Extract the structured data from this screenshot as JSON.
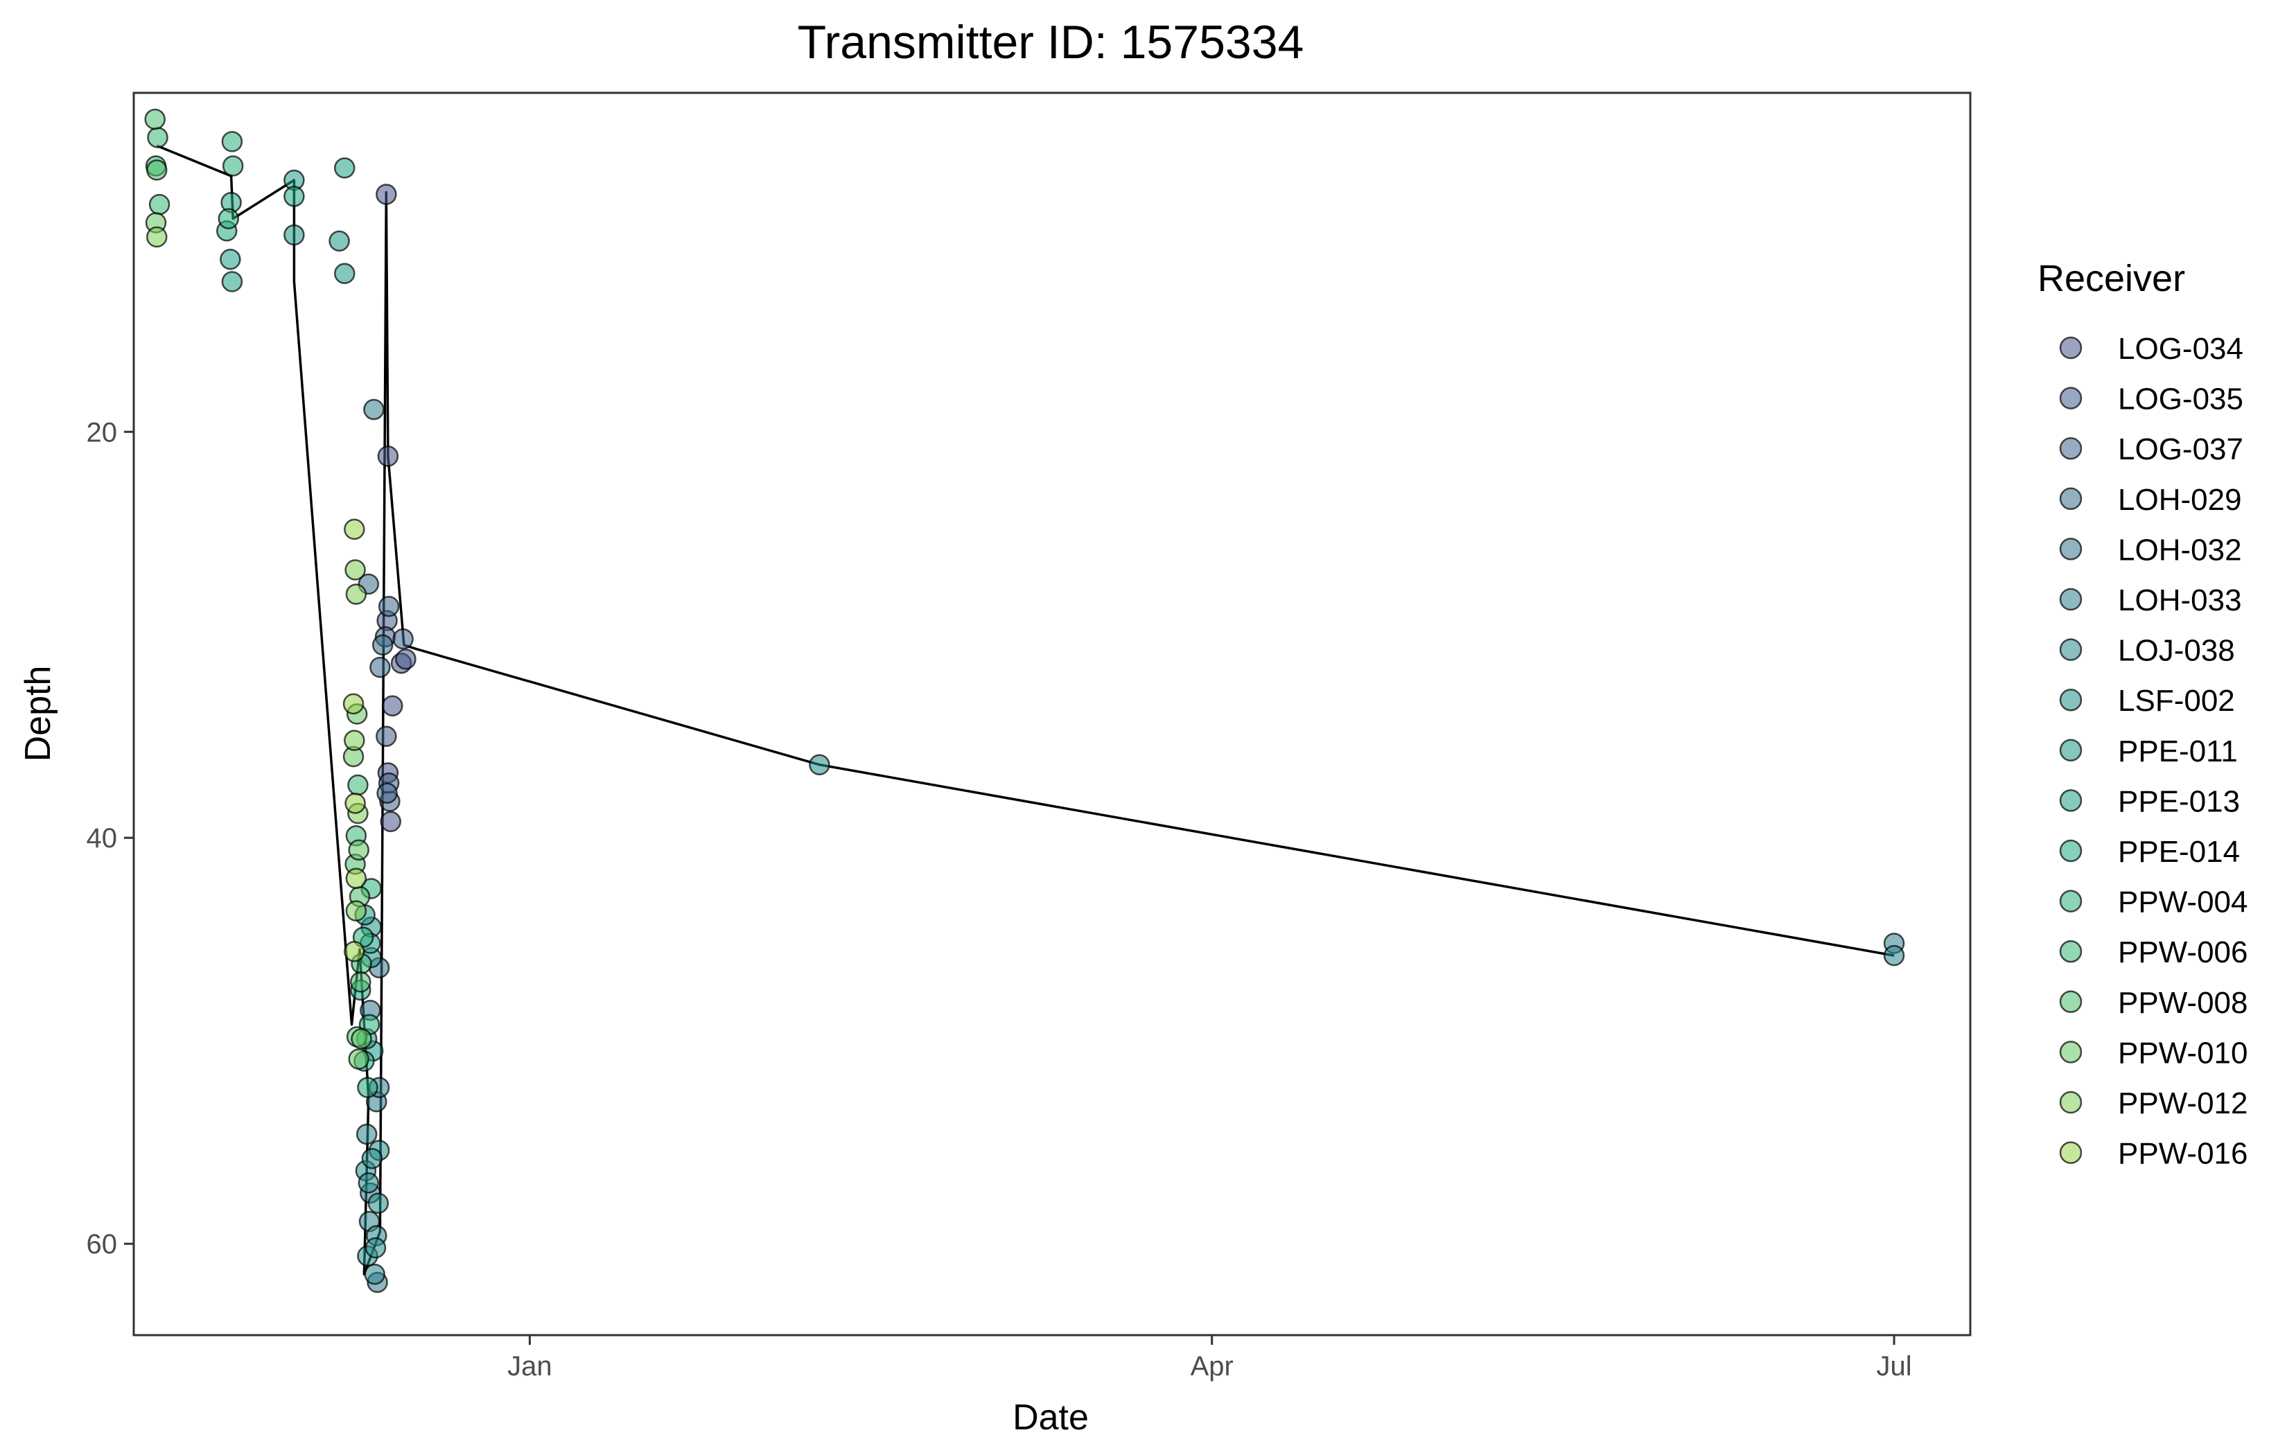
{
  "chart_data": {
    "type": "scatter",
    "title": "Transmitter ID: 1575334",
    "xlabel": "Date",
    "ylabel": "Depth",
    "x_unit": "days since Jan 1",
    "xlim": [
      -44.7,
      162.6
    ],
    "ylim": [
      64.5,
      3.3
    ],
    "y_reversed": true,
    "grid": false,
    "x_ticks": [
      {
        "label": "Jan",
        "value": 0
      },
      {
        "label": "Apr",
        "value": 77
      },
      {
        "label": "Jul",
        "value": 154
      }
    ],
    "y_ticks": [
      20,
      40,
      60
    ],
    "legend": {
      "title": "Receiver",
      "placement": "right",
      "entries": [
        {
          "label": "LOG-034",
          "color": "#48578c"
        },
        {
          "label": "LOG-035",
          "color": "#455f8d"
        },
        {
          "label": "LOG-037",
          "color": "#41678d"
        },
        {
          "label": "LOH-029",
          "color": "#3c6f8d"
        },
        {
          "label": "LOH-032",
          "color": "#36778e"
        },
        {
          "label": "LOH-033",
          "color": "#317f8e"
        },
        {
          "label": "LOJ-038",
          "color": "#2b878e"
        },
        {
          "label": "LSF-002",
          "color": "#268f8d"
        },
        {
          "label": "PPE-011",
          "color": "#21978b"
        },
        {
          "label": "PPE-013",
          "color": "#1fa088"
        },
        {
          "label": "PPE-014",
          "color": "#22a884"
        },
        {
          "label": "PPW-004",
          "color": "#2cb07e"
        },
        {
          "label": "PPW-006",
          "color": "#3bb877"
        },
        {
          "label": "PPW-008",
          "color": "#4fc06e"
        },
        {
          "label": "PPW-010",
          "color": "#66c664"
        },
        {
          "label": "PPW-012",
          "color": "#7fcd58"
        },
        {
          "label": "PPW-016",
          "color": "#99d34b"
        }
      ]
    },
    "series": [
      {
        "name": "LOG-034",
        "points": [
          [
            -16.2,
            8.3
          ],
          [
            -16.0,
            21.2
          ],
          [
            -14.5,
            31.4
          ],
          [
            -15.5,
            33.5
          ],
          [
            -16.0,
            36.8
          ],
          [
            -15.7,
            39.2
          ],
          [
            -14.0,
            31.2
          ]
        ]
      },
      {
        "name": "LOG-035",
        "points": [
          [
            -16.1,
            29.3
          ],
          [
            -16.3,
            30.1
          ],
          [
            -15.8,
            38.2
          ],
          [
            -16.2,
            35.0
          ],
          [
            -15.9,
            37.3
          ]
        ]
      },
      {
        "name": "LOG-037",
        "points": [
          [
            -14.3,
            30.2
          ],
          [
            -15.9,
            28.6
          ],
          [
            -16.1,
            37.8
          ]
        ]
      },
      {
        "name": "LOH-029",
        "points": [
          [
            -16.6,
            30.5
          ],
          [
            -16.9,
            31.6
          ],
          [
            -18.2,
            27.5
          ]
        ]
      },
      {
        "name": "LOH-032",
        "points": [
          [
            -17.0,
            46.4
          ],
          [
            -18.0,
            48.5
          ],
          [
            -17.2,
            61.9
          ]
        ]
      },
      {
        "name": "LOH-033",
        "points": [
          [
            -17.6,
            18.9
          ],
          [
            -17.3,
            53.0
          ],
          [
            -18.0,
            57.5
          ],
          [
            -17.0,
            52.3
          ],
          [
            154.0,
            45.2
          ]
        ]
      },
      {
        "name": "LOJ-038",
        "points": [
          [
            -18.1,
            58.9
          ],
          [
            -17.5,
            61.5
          ],
          [
            -17.3,
            59.6
          ],
          [
            -18.4,
            54.6
          ],
          [
            154.0,
            45.8
          ]
        ]
      },
      {
        "name": "LSF-002",
        "points": [
          [
            -18.3,
            60.6
          ],
          [
            -17.0,
            55.4
          ],
          [
            -18.5,
            56.4
          ],
          [
            -17.4,
            60.2
          ],
          [
            -17.1,
            58.0
          ],
          [
            -18.2,
            57.0
          ],
          [
            -17.8,
            55.8
          ],
          [
            32.7,
            36.4
          ]
        ]
      },
      {
        "name": "PPE-011",
        "points": [
          [
            -20.9,
            12.2
          ],
          [
            -21.5,
            10.6
          ],
          [
            -26.6,
            10.3
          ],
          [
            -17.9,
            44.4
          ],
          [
            -18.6,
            43.8
          ],
          [
            -17.7,
            50.5
          ],
          [
            -17.9,
            45.9
          ]
        ]
      },
      {
        "name": "PPE-013",
        "points": [
          [
            -26.6,
            7.6
          ],
          [
            -20.9,
            7.0
          ],
          [
            -33.8,
            11.5
          ],
          [
            -33.6,
            12.6
          ],
          [
            -18.0,
            45.2
          ],
          [
            -18.4,
            49.9
          ]
        ]
      },
      {
        "name": "PPE-014",
        "points": [
          [
            -33.7,
            8.7
          ],
          [
            -34.2,
            10.1
          ],
          [
            -26.6,
            8.4
          ],
          [
            -19.1,
            47.5
          ],
          [
            -18.3,
            52.3
          ],
          [
            -18.7,
            51.0
          ]
        ]
      },
      {
        "name": "PPW-004",
        "points": [
          [
            -33.6,
            5.7
          ],
          [
            -33.5,
            6.9
          ],
          [
            -34.0,
            9.5
          ],
          [
            -17.9,
            42.5
          ],
          [
            -18.8,
            44.9
          ],
          [
            -18.1,
            49.2
          ]
        ]
      },
      {
        "name": "PPW-006",
        "points": [
          [
            -42.0,
            5.5
          ],
          [
            -42.2,
            6.9
          ],
          [
            -41.8,
            8.8
          ],
          [
            -19.4,
            37.4
          ],
          [
            -19.6,
            39.9
          ],
          [
            -19.0,
            46.2
          ]
        ]
      },
      {
        "name": "PPW-008",
        "points": [
          [
            -42.3,
            4.6
          ],
          [
            -42.1,
            7.1
          ],
          [
            -19.7,
            41.3
          ],
          [
            -19.2,
            42.9
          ],
          [
            -19.1,
            47.1
          ],
          [
            -19.5,
            49.8
          ]
        ]
      },
      {
        "name": "PPW-010",
        "points": [
          [
            -42.2,
            9.7
          ],
          [
            -19.5,
            33.9
          ],
          [
            -19.9,
            36.0
          ],
          [
            -19.3,
            40.6
          ],
          [
            -19.0,
            49.9
          ],
          [
            -19.3,
            50.9
          ]
        ]
      },
      {
        "name": "PPW-012",
        "points": [
          [
            -42.1,
            10.4
          ],
          [
            -19.7,
            26.8
          ],
          [
            -19.6,
            28.0
          ],
          [
            -19.8,
            35.2
          ],
          [
            -19.4,
            38.8
          ],
          [
            -19.6,
            43.6
          ]
        ]
      },
      {
        "name": "PPW-016",
        "points": [
          [
            -19.8,
            24.8
          ],
          [
            -19.9,
            33.4
          ],
          [
            -19.7,
            38.3
          ],
          [
            -19.6,
            42.0
          ],
          [
            -19.8,
            45.6
          ]
        ]
      }
    ],
    "track": [
      [
        -42.1,
        5.9
      ],
      [
        -33.7,
        7.4
      ],
      [
        -33.5,
        9.5
      ],
      [
        -26.6,
        7.6
      ],
      [
        -26.6,
        12.6
      ],
      [
        -20.1,
        49.2
      ],
      [
        -19.2,
        45.5
      ],
      [
        -18.2,
        52.8
      ],
      [
        -18.7,
        61.5
      ],
      [
        -16.9,
        59.4
      ],
      [
        -16.2,
        8.2
      ],
      [
        -16.0,
        21.2
      ],
      [
        -14.2,
        30.5
      ],
      [
        -12.8,
        30.7
      ],
      [
        32.7,
        36.4
      ],
      [
        154.0,
        45.8
      ]
    ]
  }
}
